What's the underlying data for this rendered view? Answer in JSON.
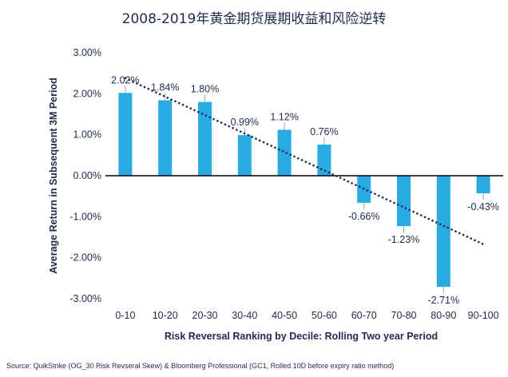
{
  "chart_data": {
    "type": "bar",
    "title": "2008-2019年黄金期货展期收益和风险逆转",
    "xlabel": "Risk Reversal Ranking by Decile: Rolling Two year Period",
    "ylabel": "Average Return in Subsequent 3M Period",
    "categories": [
      "0-10",
      "10-20",
      "20-30",
      "30-40",
      "40-50",
      "50-60",
      "60-70",
      "70-80",
      "80-90",
      "90-100"
    ],
    "values": [
      2.02,
      1.84,
      1.8,
      0.99,
      1.12,
      0.76,
      -0.66,
      -1.23,
      -2.71,
      -0.43
    ],
    "data_labels": [
      "2.02%",
      "1.84%",
      "1.80%",
      "0.99%",
      "1.12%",
      "0.76%",
      "-0.66%",
      "-1.23%",
      "-2.71%",
      "-0.43%"
    ],
    "ylim": [
      -3,
      3
    ],
    "yticks": [
      3,
      2,
      1,
      0,
      -1,
      -2,
      -3
    ],
    "ytick_labels": [
      "3.00%",
      "2.00%",
      "1.00%",
      "0.00%",
      "-1.00%",
      "-2.00%",
      "-3.00%"
    ],
    "trendline": {
      "style": "dotted",
      "start": 2.38,
      "end": -1.67
    },
    "grid": false,
    "legend": "none",
    "bar_color": "#29abe2",
    "text_color": "#1d2b4f"
  },
  "source": "Source: QuikStrike (OG_30 Risk Revseral Skew) & Bloomberg Professional (GC1, Rolled 10D before expiry ratio method)"
}
